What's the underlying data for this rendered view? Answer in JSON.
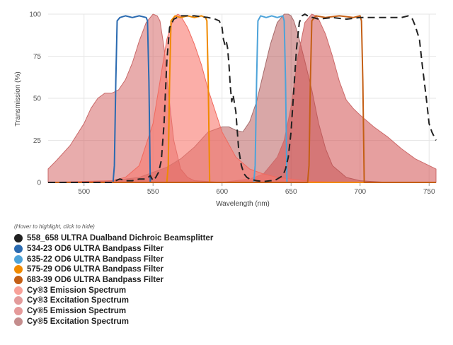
{
  "chart_data": {
    "type": "area",
    "title": "",
    "xlabel": "Wavelength (nm)",
    "ylabel": "Transmission (%)",
    "xlim": [
      474,
      755
    ],
    "ylim": [
      0,
      100
    ],
    "xticks": [
      500,
      550,
      600,
      650,
      700,
      750
    ],
    "yticks": [
      0,
      25,
      50,
      75,
      100
    ],
    "grid": true,
    "legend_hint": "(Hover to highlight, click to hide)",
    "series": [
      {
        "id": "bs",
        "name": "558_658 ULTRA Dualband Dichroic Beamsplitter",
        "color": "#222222",
        "kind": "dashed",
        "x": [
          474,
          500,
          510,
          515,
          520,
          526,
          530,
          535,
          540,
          545,
          548,
          550,
          552,
          554,
          556,
          558,
          560,
          562,
          565,
          570,
          580,
          590,
          595,
          598,
          600,
          601,
          602,
          603,
          604,
          605,
          606,
          607,
          608,
          610,
          612,
          614,
          616,
          618,
          620,
          625,
          630,
          635,
          638,
          640,
          642,
          644,
          646,
          648,
          650,
          652,
          654,
          656,
          658,
          660,
          662,
          664,
          666,
          670,
          680,
          690,
          700,
          710,
          720,
          730,
          735,
          738,
          740,
          743,
          745,
          748,
          750,
          752,
          755
        ],
        "y": [
          0,
          0,
          0,
          0,
          0,
          2,
          1,
          1,
          2,
          2,
          4,
          1,
          3,
          6,
          13,
          35,
          72,
          92,
          97,
          99,
          99,
          98,
          97,
          96,
          92,
          85,
          82,
          84,
          80,
          70,
          57,
          48,
          52,
          42,
          20,
          10,
          5,
          3,
          2,
          1,
          0.5,
          1,
          1,
          2,
          3,
          4,
          8,
          15,
          30,
          55,
          80,
          95,
          99,
          100,
          99,
          98,
          98,
          97,
          98,
          97,
          98,
          98,
          98,
          98,
          99,
          97,
          93,
          85,
          70,
          50,
          35,
          30,
          25
        ]
      },
      {
        "id": "f534",
        "name": "534-23 OD6 ULTRA Bandpass Filter",
        "color": "#2a6ab0",
        "kind": "bandpass",
        "x": [
          474,
          521,
          522,
          523,
          524,
          526,
          530,
          535,
          540,
          545,
          546,
          547,
          548,
          755
        ],
        "y": [
          0,
          0,
          10,
          60,
          96,
          98,
          99,
          98,
          99,
          98,
          96,
          60,
          0,
          0
        ]
      },
      {
        "id": "f635",
        "name": "635-22 OD6 ULTRA Bandpass Filter",
        "color": "#4da3d9",
        "kind": "bandpass",
        "x": [
          474,
          623,
          624,
          625,
          626,
          628,
          632,
          636,
          640,
          644,
          645,
          646,
          647,
          755
        ],
        "y": [
          0,
          0,
          10,
          60,
          96,
          99,
          98,
          99,
          98,
          99,
          96,
          60,
          0,
          0
        ]
      },
      {
        "id": "f575",
        "name": "575-29 OD6 ULTRA Bandpass Filter",
        "color": "#f08a00",
        "kind": "bandpass",
        "x": [
          474,
          560,
          561,
          562,
          563,
          566,
          570,
          575,
          580,
          585,
          588,
          589,
          590,
          591,
          755
        ],
        "y": [
          0,
          0,
          10,
          60,
          96,
          99,
          98,
          99,
          98,
          99,
          98,
          96,
          60,
          0,
          0
        ]
      },
      {
        "id": "f683",
        "name": "683-39 OD6 ULTRA Bandpass Filter",
        "color": "#c45f15",
        "kind": "bandpass",
        "x": [
          474,
          662,
          663,
          664,
          665,
          668,
          675,
          685,
          695,
          700,
          701,
          702,
          703,
          755
        ],
        "y": [
          0,
          0,
          10,
          60,
          96,
          99,
          98,
          99,
          98,
          99,
          96,
          60,
          0,
          0
        ]
      },
      {
        "id": "cy3em",
        "name": "Cy®3 Emission Spectrum",
        "color": "#f8a199",
        "kind": "area",
        "fill": "rgba(248,120,110,0.6)",
        "stroke": "#f06a5f",
        "x": [
          474,
          520,
          530,
          540,
          550,
          555,
          560,
          565,
          568,
          570,
          575,
          580,
          585,
          590,
          600,
          610,
          620,
          630,
          640,
          650,
          660,
          670,
          680,
          700,
          755
        ],
        "y": [
          0,
          1,
          3,
          10,
          35,
          60,
          85,
          98,
          100,
          99,
          92,
          82,
          70,
          55,
          30,
          15,
          8,
          5,
          3,
          2,
          1,
          0.5,
          0.2,
          0,
          0
        ]
      },
      {
        "id": "cy3ex",
        "name": "Cy®3 Excitation Spectrum",
        "color": "#e39b9b",
        "kind": "area",
        "fill": "rgba(210,90,90,0.5)",
        "stroke": "#c96a6a",
        "x": [
          474,
          480,
          490,
          500,
          505,
          510,
          515,
          520,
          525,
          530,
          535,
          540,
          545,
          550,
          553,
          555,
          558,
          560,
          565,
          570,
          575,
          580,
          590,
          600,
          620,
          650,
          700,
          755
        ],
        "y": [
          8,
          13,
          22,
          35,
          44,
          50,
          53,
          53,
          55,
          61,
          71,
          84,
          95,
          100,
          99,
          96,
          80,
          62,
          25,
          8,
          3,
          1,
          0.5,
          0,
          0,
          0,
          0,
          0
        ]
      },
      {
        "id": "cy5em",
        "name": "Cy®5 Emission Spectrum",
        "color": "#e59a9a",
        "kind": "area",
        "fill": "rgba(210,80,80,0.55)",
        "stroke": "#cc6a6a",
        "x": [
          474,
          600,
          620,
          630,
          640,
          645,
          650,
          655,
          660,
          665,
          668,
          670,
          675,
          680,
          685,
          690,
          695,
          700,
          710,
          720,
          730,
          740,
          750,
          755
        ],
        "y": [
          0,
          0,
          2,
          5,
          15,
          25,
          45,
          75,
          95,
          100,
          99,
          97,
          88,
          75,
          60,
          49,
          44,
          40,
          33,
          27,
          20,
          14,
          10,
          8
        ]
      },
      {
        "id": "cy5ex",
        "name": "Cy®5 Excitation Spectrum",
        "color": "#c48d8d",
        "kind": "area",
        "fill": "rgba(170,60,60,0.45)",
        "stroke": "#a66b6b",
        "x": [
          474,
          500,
          520,
          540,
          560,
          570,
          580,
          590,
          600,
          605,
          610,
          615,
          620,
          625,
          630,
          635,
          640,
          645,
          648,
          650,
          652,
          655,
          660,
          665,
          670,
          675,
          680,
          690,
          700,
          720,
          755
        ],
        "y": [
          0,
          0,
          1,
          3,
          9,
          14,
          21,
          30,
          33,
          33,
          31,
          30,
          36,
          48,
          65,
          82,
          95,
          100,
          100,
          99,
          96,
          88,
          72,
          55,
          35,
          20,
          10,
          3,
          1,
          0,
          0
        ]
      }
    ]
  }
}
